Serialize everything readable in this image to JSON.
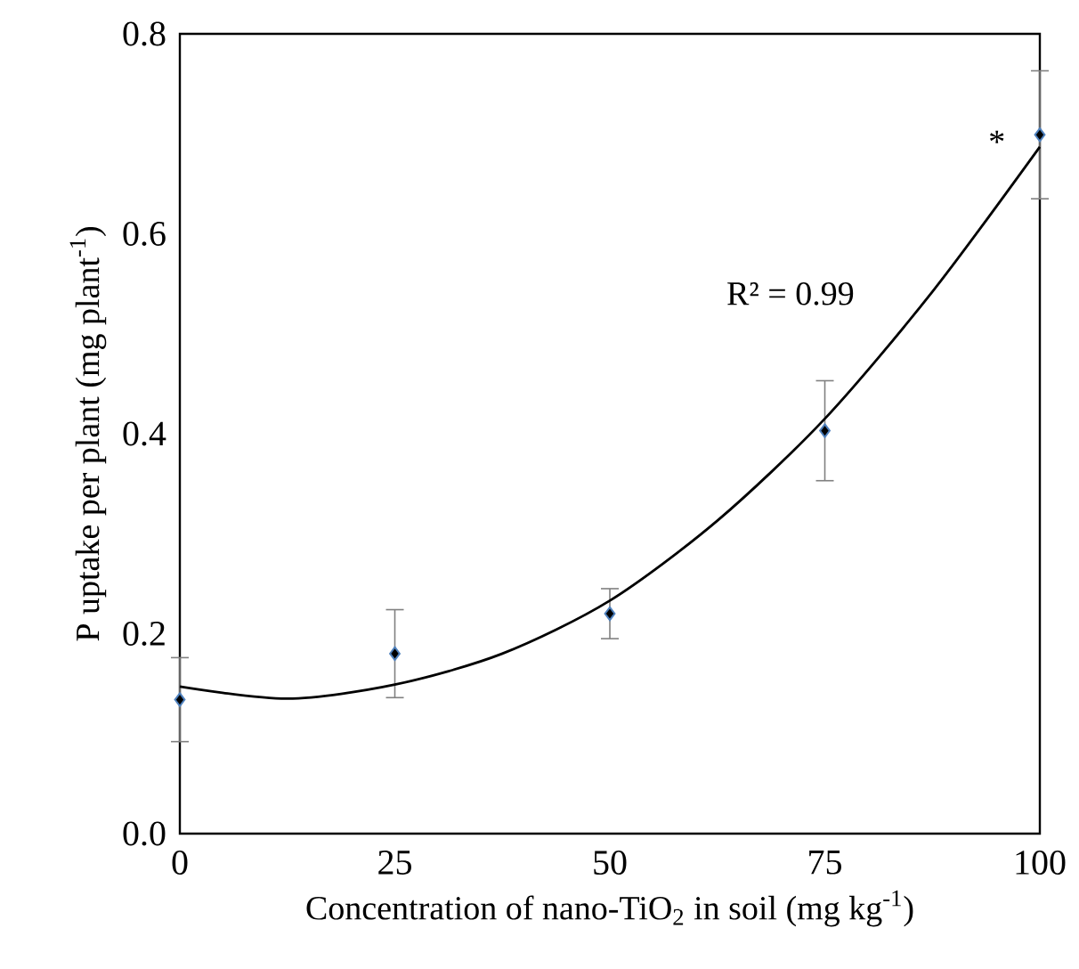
{
  "chart_data": {
    "type": "scatter",
    "xlabel": "Concentration of nano-TiO$_{2}$ in soil (mg kg$^{-1}$)",
    "ylabel": "P uptake per plant (mg plant$^{-1}$)",
    "xlim": [
      0,
      100
    ],
    "ylim": [
      0,
      0.8
    ],
    "xticks": [
      0,
      25,
      50,
      75,
      100
    ],
    "yticks": [
      {
        "value": 0,
        "label": "0.0"
      },
      {
        "value": 0.2,
        "label": "0.2"
      },
      {
        "value": 0.4,
        "label": "0.4"
      },
      {
        "value": 0.6,
        "label": "0.6"
      },
      {
        "value": 0.8,
        "label": "0.8"
      }
    ],
    "series": [
      {
        "color": "#4f81bd",
        "marker": "diamond",
        "x": [
          0,
          25,
          50,
          75,
          100
        ],
        "values": [
          0.134,
          0.18,
          0.22,
          0.403,
          0.699
        ],
        "errors": [
          0.042,
          0.044,
          0.025,
          0.05,
          0.064
        ]
      },
      {
        "type": "line",
        "color": "#000000",
        "line_style": "solid",
        "x": [
          0,
          12.5,
          25,
          37.5,
          50,
          62.5,
          75,
          87.5,
          100
        ],
        "values": [
          0.147,
          0.135,
          0.149,
          0.18,
          0.233,
          0.313,
          0.415,
          0.542,
          0.687
        ]
      }
    ],
    "annotations": [
      "R² = 0.99",
      "*"
    ]
  }
}
